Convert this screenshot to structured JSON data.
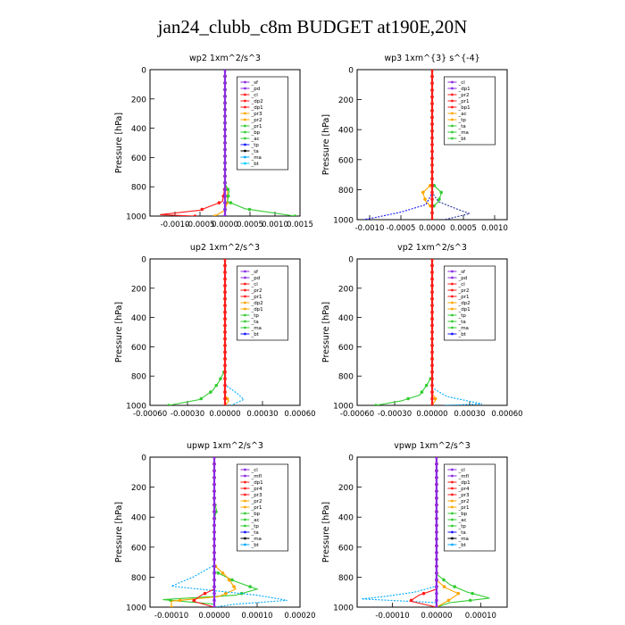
{
  "figure": {
    "title": "jan24_clubb_c8m  BUDGET at190E,20N"
  },
  "chart_data": [
    {
      "type": "line",
      "title": "wp2  1xm^2/s^3",
      "ylabel": "Pressure [hPa]",
      "xlim": [
        -0.0015,
        0.0015
      ],
      "ylim": [
        1000,
        0
      ],
      "xticks": [
        -0.001,
        -0.0005,
        0.0,
        0.0005,
        0.001,
        0.0015
      ],
      "xticklabels": [
        "-0.0010",
        "-0.0005",
        "0.0000",
        "0.0005",
        "0.0010",
        "0.0015"
      ],
      "yticks": [
        0,
        200,
        400,
        600,
        800,
        1000
      ],
      "yticklabels": [
        "0",
        "200",
        "400",
        "600",
        "800",
        "1000"
      ],
      "legend": [
        "_sf",
        "_pd",
        "_cl",
        "_dp2",
        "_dp1",
        "_pr3",
        "_pr2",
        "_pr1",
        "_bp",
        "_ac",
        "_tp",
        "_ta",
        "_ma",
        "_bt"
      ],
      "legend_position": "top-right",
      "series": [
        {
          "color": "#1414ff",
          "marker": "circle",
          "points": [
            [
              0,
              0
            ],
            [
              0,
              600
            ],
            [
              0,
              800
            ],
            [
              0,
              950
            ],
            [
              0,
              1000
            ]
          ]
        },
        {
          "color": "#ff1a1a",
          "marker": "circle",
          "points": [
            [
              0,
              0
            ],
            [
              0,
              800
            ],
            [
              -5e-05,
              900
            ],
            [
              -0.0005,
              960
            ],
            [
              -0.0013,
              990
            ],
            [
              -0.0006,
              1000
            ]
          ]
        },
        {
          "color": "#ffa500",
          "marker": "circle",
          "points": [
            [
              0,
              0
            ],
            [
              0,
              780
            ],
            [
              5e-05,
              830
            ],
            [
              5e-05,
              900
            ],
            [
              0,
              960
            ],
            [
              -0.0002,
              1000
            ]
          ]
        },
        {
          "color": "#33cc33",
          "marker": "circle",
          "points": [
            [
              0,
              0
            ],
            [
              0,
              780
            ],
            [
              8e-05,
              830
            ],
            [
              5e-05,
              900
            ],
            [
              0.0004,
              950
            ],
            [
              0.0014,
              1000
            ]
          ]
        },
        {
          "color": "#00cfff",
          "marker": "dash",
          "points": [
            [
              0,
              0
            ],
            [
              0,
              900
            ],
            [
              2e-05,
              960
            ],
            [
              0,
              1000
            ]
          ]
        },
        {
          "color": "#8b2be2",
          "marker": "circle",
          "points": [
            [
              0,
              0
            ],
            [
              0,
              1000
            ]
          ]
        }
      ]
    },
    {
      "type": "line",
      "title": "wp3  1xm^{3} s^{-4}",
      "ylabel": "Pressure [hPa]",
      "xlim": [
        -0.0012,
        0.0012
      ],
      "ylim": [
        1000,
        0
      ],
      "xticks": [
        -0.001,
        -0.0005,
        0.0,
        0.0005,
        0.001
      ],
      "xticklabels": [
        "-0.0010",
        "-0.0005",
        "0.0000",
        "0.0005",
        "0.0010"
      ],
      "yticks": [
        0,
        200,
        400,
        600,
        800,
        1000
      ],
      "yticklabels": [
        "0",
        "200",
        "400",
        "600",
        "800",
        "1000"
      ],
      "legend": [
        "_cl",
        "_dp1",
        "_pr2",
        "_pr1",
        "_bp1",
        "_ac",
        "_tp",
        "_ta",
        "_ma",
        "_bt"
      ],
      "legend_position": "top-right",
      "series": [
        {
          "color": "#ffa500",
          "marker": "circle",
          "points": [
            [
              0,
              0
            ],
            [
              0,
              760
            ],
            [
              -0.00015,
              820
            ],
            [
              -0.0001,
              880
            ],
            [
              0,
              920
            ],
            [
              0,
              1000
            ]
          ]
        },
        {
          "color": "#33cc33",
          "marker": "circle",
          "points": [
            [
              0,
              0
            ],
            [
              0,
              760
            ],
            [
              0.00015,
              820
            ],
            [
              0.0001,
              880
            ],
            [
              0,
              920
            ],
            [
              0,
              1000
            ]
          ]
        },
        {
          "color": "#1414ff",
          "marker": "dash",
          "points": [
            [
              0,
              0
            ],
            [
              0,
              820
            ],
            [
              -0.0001,
              900
            ],
            [
              -0.0005,
              950
            ],
            [
              -0.0009,
              985
            ],
            [
              -0.0011,
              1000
            ]
          ]
        },
        {
          "color": "#223399",
          "marker": "dash",
          "points": [
            [
              0,
              0
            ],
            [
              0,
              820
            ],
            [
              0.0001,
              880
            ],
            [
              0.0004,
              930
            ],
            [
              0.0006,
              960
            ],
            [
              0.0002,
              1000
            ]
          ]
        },
        {
          "color": "#ff1a1a",
          "marker": "circle",
          "points": [
            [
              0,
              0
            ],
            [
              0,
              1000
            ]
          ]
        }
      ]
    },
    {
      "type": "line",
      "title": "up2  1xm^2/s^3",
      "ylabel": "Pressure [hPa]",
      "xlim": [
        -0.0006,
        0.0006
      ],
      "ylim": [
        1000,
        0
      ],
      "xticks": [
        -0.0006,
        -0.0003,
        0.0,
        0.0003,
        0.0006
      ],
      "xticklabels": [
        "-0.00060",
        "-0.00030",
        "0.00000",
        "0.00030",
        "0.00060"
      ],
      "yticks": [
        0,
        200,
        400,
        600,
        800,
        1000
      ],
      "yticklabels": [
        "0",
        "200",
        "400",
        "600",
        "800",
        "1000"
      ],
      "legend": [
        "_sf",
        "_pd",
        "_cl",
        "_pr2",
        "_pr1",
        "_dp2",
        "_dp1",
        "_tp",
        "_ta",
        "_ma",
        "_bt"
      ],
      "legend_position": "top-right",
      "series": [
        {
          "color": "#33cc33",
          "marker": "circle",
          "points": [
            [
              0,
              0
            ],
            [
              0,
              760
            ],
            [
              -5e-05,
              840
            ],
            [
              -0.0001,
              900
            ],
            [
              -0.0002,
              960
            ],
            [
              -0.00045,
              1000
            ]
          ]
        },
        {
          "color": "#00aaff",
          "marker": "dash",
          "points": [
            [
              0,
              0
            ],
            [
              0,
              860
            ],
            [
              0.0001,
              920
            ],
            [
              0.00015,
              960
            ],
            [
              5e-05,
              1000
            ]
          ]
        },
        {
          "color": "#ffa500",
          "marker": "circle",
          "points": [
            [
              0,
              0
            ],
            [
              0,
              930
            ],
            [
              3e-05,
              970
            ],
            [
              0,
              1000
            ]
          ]
        },
        {
          "color": "#ff1a1a",
          "marker": "circle",
          "points": [
            [
              0,
              0
            ],
            [
              0,
              1000
            ]
          ]
        }
      ]
    },
    {
      "type": "line",
      "title": "vp2  1xm^2/s^3",
      "ylabel": "Pressure [hPa]",
      "xlim": [
        -0.0006,
        0.0006
      ],
      "ylim": [
        1000,
        0
      ],
      "xticks": [
        -0.0006,
        -0.0003,
        0.0,
        0.0003,
        0.0006
      ],
      "xticklabels": [
        "-0.00060",
        "-0.00030",
        "0.00000",
        "0.00030",
        "0.00060"
      ],
      "yticks": [
        0,
        200,
        400,
        600,
        800,
        1000
      ],
      "yticklabels": [
        "0",
        "200",
        "400",
        "600",
        "800",
        "1000"
      ],
      "legend": [
        "_sf",
        "_pd",
        "_cl",
        "_pr2",
        "_pr1",
        "_dp2",
        "_dp1",
        "_tp",
        "_ta",
        "_ma",
        "_bt"
      ],
      "legend_position": "top-right",
      "series": [
        {
          "color": "#33cc33",
          "marker": "circle",
          "points": [
            [
              0,
              0
            ],
            [
              0,
              800
            ],
            [
              -5e-05,
              870
            ],
            [
              -0.0001,
              930
            ],
            [
              -0.00025,
              970
            ],
            [
              -0.00045,
              1000
            ]
          ]
        },
        {
          "color": "#00aaff",
          "marker": "dash",
          "points": [
            [
              0,
              0
            ],
            [
              0,
              880
            ],
            [
              0.00012,
              940
            ],
            [
              0.0004,
              990
            ],
            [
              0.0001,
              1000
            ]
          ]
        },
        {
          "color": "#ffa500",
          "marker": "circle",
          "points": [
            [
              0,
              0
            ],
            [
              0,
              920
            ],
            [
              3e-05,
              960
            ],
            [
              0,
              1000
            ]
          ]
        },
        {
          "color": "#ff1a1a",
          "marker": "circle",
          "points": [
            [
              0,
              0
            ],
            [
              0,
              1000
            ]
          ]
        }
      ]
    },
    {
      "type": "line",
      "title": "upwp  1xm^2/s^3",
      "ylabel": "Pressure [hPa]",
      "xlim": [
        -0.00015,
        0.0002
      ],
      "ylim": [
        1000,
        0
      ],
      "xticks": [
        -0.0001,
        0.0,
        0.0001,
        0.0002
      ],
      "xticklabels": [
        "-0.00010",
        "0.00000",
        "0.00010",
        "0.00020"
      ],
      "yticks": [
        0,
        200,
        400,
        600,
        800,
        1000
      ],
      "yticklabels": [
        "0",
        "200",
        "400",
        "600",
        "800",
        "1000"
      ],
      "legend": [
        "_cl",
        "_mfl",
        "_dp1",
        "_pr4",
        "_pr3",
        "_pr2",
        "_pr1",
        "_bp",
        "_ac",
        "_tp",
        "_ta",
        "_ma",
        "_bt"
      ],
      "legend_position": "top-right",
      "series": [
        {
          "color": "#33cc33",
          "marker": "circle",
          "points": [
            [
              0,
              0
            ],
            [
              0,
              300
            ],
            [
              5e-06,
              350
            ],
            [
              0,
              420
            ],
            [
              0,
              760
            ],
            [
              5e-05,
              830
            ],
            [
              0.0001,
              880
            ],
            [
              5e-05,
              920
            ],
            [
              -0.00012,
              950
            ],
            [
              0,
              980
            ],
            [
              0,
              1000
            ]
          ]
        },
        {
          "color": "#ffa500",
          "marker": "circle",
          "points": [
            [
              0,
              0
            ],
            [
              0,
              720
            ],
            [
              3e-05,
              800
            ],
            [
              5e-05,
              880
            ],
            [
              1e-05,
              930
            ],
            [
              -0.0001,
              960
            ],
            [
              -0.0001,
              1000
            ]
          ]
        },
        {
          "color": "#00aaff",
          "marker": "dash",
          "points": [
            [
              0,
              0
            ],
            [
              0,
              720
            ],
            [
              -5e-05,
              800
            ],
            [
              -0.0001,
              860
            ],
            [
              0.0001,
              920
            ],
            [
              0.00017,
              955
            ],
            [
              5e-05,
              980
            ],
            [
              0,
              1000
            ]
          ]
        },
        {
          "color": "#ff1a1a",
          "marker": "circle",
          "points": [
            [
              0,
              0
            ],
            [
              0,
              880
            ],
            [
              -3e-05,
              920
            ],
            [
              -5e-05,
              960
            ],
            [
              0,
              1000
            ]
          ]
        },
        {
          "color": "#8b2be2",
          "marker": "circle",
          "points": [
            [
              0,
              0
            ],
            [
              0,
              1000
            ]
          ]
        }
      ]
    },
    {
      "type": "line",
      "title": "vpwp  1xm^2/s^3",
      "ylabel": "Pressure [hPa]",
      "xlim": [
        -0.00018,
        0.00016
      ],
      "ylim": [
        1000,
        0
      ],
      "xticks": [
        -0.0001,
        0.0,
        0.0001
      ],
      "xticklabels": [
        "-0.00010",
        "0.00000",
        "0.00010"
      ],
      "yticks": [
        0,
        200,
        400,
        600,
        800,
        1000
      ],
      "yticklabels": [
        "0",
        "200",
        "400",
        "600",
        "800",
        "1000"
      ],
      "legend": [
        "_cl",
        "_mfl",
        "_dp1",
        "_pr4",
        "_pr3",
        "_pr2",
        "_pr1",
        "_bp",
        "_ac",
        "_tp",
        "_ta",
        "_ma",
        "_bt"
      ],
      "legend_position": "top-right",
      "series": [
        {
          "color": "#33cc33",
          "marker": "circle",
          "points": [
            [
              0,
              0
            ],
            [
              0,
              780
            ],
            [
              3e-05,
              850
            ],
            [
              7e-05,
              900
            ],
            [
              0.00012,
              940
            ],
            [
              3e-05,
              970
            ],
            [
              0,
              1000
            ]
          ]
        },
        {
          "color": "#ffa500",
          "marker": "circle",
          "points": [
            [
              0,
              0
            ],
            [
              0,
              820
            ],
            [
              2e-05,
              870
            ],
            [
              5e-05,
              910
            ],
            [
              3e-05,
              950
            ],
            [
              0,
              1000
            ]
          ]
        },
        {
          "color": "#00aaff",
          "marker": "dash",
          "points": [
            [
              0,
              0
            ],
            [
              0,
              860
            ],
            [
              -5e-05,
              900
            ],
            [
              -0.00012,
              930
            ],
            [
              -0.00017,
              945
            ],
            [
              0,
              970
            ],
            [
              0,
              1000
            ]
          ]
        },
        {
          "color": "#ff1a1a",
          "marker": "circle",
          "points": [
            [
              0,
              0
            ],
            [
              0,
              880
            ],
            [
              -4e-05,
              920
            ],
            [
              -6e-05,
              960
            ],
            [
              0,
              1000
            ]
          ]
        },
        {
          "color": "#8b2be2",
          "marker": "circle",
          "points": [
            [
              0,
              0
            ],
            [
              0,
              1000
            ]
          ]
        }
      ]
    }
  ]
}
